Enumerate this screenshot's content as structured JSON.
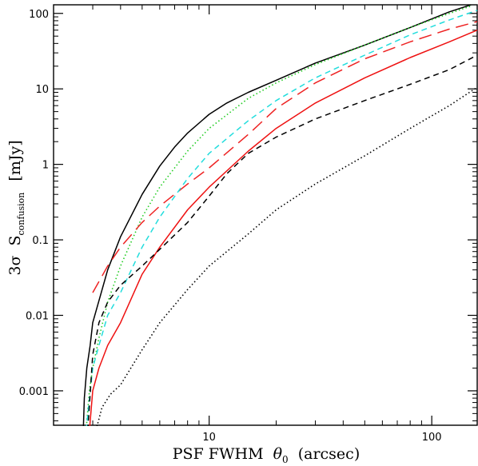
{
  "chart_data": {
    "type": "line",
    "title": "",
    "xscale": "log",
    "yscale": "log",
    "xlim": [
      2,
      160
    ],
    "ylim": [
      0.00035,
      130
    ],
    "grid": false,
    "legend": "none",
    "xlabel": {
      "main": "PSF FWHM",
      "symbol": "θ",
      "symbol_sub": "0",
      "unit": "(arcsec)"
    },
    "ylabel": {
      "prefix": "3σ",
      "main": "S",
      "sub": "confusion",
      "unit": "[mJy]"
    },
    "x_ticks": [
      {
        "value": 10,
        "label": "10"
      },
      {
        "value": 100,
        "label": "100"
      }
    ],
    "y_ticks": [
      {
        "value": 0.001,
        "label": "0.001"
      },
      {
        "value": 0.01,
        "label": "0.01"
      },
      {
        "value": 0.1,
        "label": "0.1"
      },
      {
        "value": 1,
        "label": "1"
      },
      {
        "value": 10,
        "label": "10"
      },
      {
        "value": 100,
        "label": "100"
      }
    ],
    "series": [
      {
        "key": "black-solid",
        "color": "#000000",
        "dash": "solid",
        "x": [
          2.72,
          2.75,
          2.82,
          2.92,
          3.0,
          3.5,
          4.0,
          5.0,
          6.0,
          7.0,
          8.0,
          10.0,
          12.0,
          15.0,
          20.0,
          30.0,
          50.0,
          80.0,
          120.0,
          150.0
        ],
        "y": [
          0.0003,
          0.0008,
          0.002,
          0.004,
          0.008,
          0.04,
          0.11,
          0.4,
          0.95,
          1.7,
          2.6,
          4.6,
          6.5,
          9.0,
          13.0,
          22.0,
          38.0,
          65.0,
          105.0,
          130.0
        ]
      },
      {
        "key": "green-dotted",
        "color": "#22cc22",
        "dash": "dotted",
        "x": [
          2.8,
          2.9,
          3.0,
          3.2,
          3.5,
          4.0,
          5.0,
          6.0,
          8.0,
          10.0,
          15.0,
          20.0,
          30.0,
          50.0,
          80.0,
          120.0,
          150.0
        ],
        "y": [
          0.0003,
          0.001,
          0.002,
          0.005,
          0.015,
          0.045,
          0.2,
          0.5,
          1.5,
          3.0,
          7.5,
          12.0,
          21.0,
          38.0,
          65.0,
          100.0,
          125.0
        ]
      },
      {
        "key": "red-longdash",
        "color": "#ee2222",
        "dash": "longdash",
        "x": [
          3.0,
          3.2,
          3.5,
          4.0,
          5.0,
          6.0,
          8.0,
          10.0,
          15.0,
          20.0,
          30.0,
          50.0,
          80.0,
          120.0,
          160.0
        ],
        "y": [
          0.02,
          0.028,
          0.045,
          0.08,
          0.17,
          0.28,
          0.55,
          0.9,
          2.5,
          5.5,
          12.0,
          25.0,
          42.0,
          62.0,
          78.0
        ]
      },
      {
        "key": "cyan-dashed",
        "color": "#22dddd",
        "dash": "dashed",
        "x": [
          2.8,
          3.0,
          3.2,
          3.5,
          4.0,
          5.0,
          6.0,
          8.0,
          10.0,
          15.0,
          20.0,
          30.0,
          50.0,
          80.0,
          120.0,
          160.0
        ],
        "y": [
          0.0003,
          0.002,
          0.004,
          0.01,
          0.02,
          0.08,
          0.2,
          0.65,
          1.4,
          3.8,
          7.0,
          14.0,
          28.0,
          52.0,
          82.0,
          110.0
        ]
      },
      {
        "key": "red-solid",
        "color": "#ee1111",
        "dash": "solid",
        "x": [
          2.9,
          3.0,
          3.2,
          3.5,
          4.0,
          5.0,
          6.0,
          8.0,
          10.0,
          15.0,
          20.0,
          30.0,
          50.0,
          80.0,
          120.0,
          160.0
        ],
        "y": [
          0.0003,
          0.001,
          0.002,
          0.004,
          0.008,
          0.035,
          0.08,
          0.25,
          0.5,
          1.5,
          3.0,
          6.5,
          14.0,
          26.0,
          42.0,
          60.0
        ]
      },
      {
        "key": "black-dashed",
        "color": "#000000",
        "dash": "dashed",
        "x": [
          2.85,
          3.0,
          3.2,
          3.5,
          4.0,
          5.0,
          6.0,
          8.0,
          10.0,
          12.0,
          15.0,
          20.0,
          30.0,
          50.0,
          80.0,
          120.0,
          160.0
        ],
        "y": [
          0.0003,
          0.003,
          0.008,
          0.015,
          0.025,
          0.045,
          0.075,
          0.17,
          0.38,
          0.75,
          1.4,
          2.3,
          4.0,
          7.0,
          11.5,
          18.0,
          28.0
        ]
      },
      {
        "key": "black-dotted",
        "color": "#000000",
        "dash": "dotted",
        "x": [
          3.1,
          3.3,
          3.6,
          4.0,
          5.0,
          6.0,
          8.0,
          10.0,
          15.0,
          20.0,
          30.0,
          50.0,
          80.0,
          120.0,
          160.0
        ],
        "y": [
          0.0003,
          0.0006,
          0.0009,
          0.0012,
          0.0035,
          0.008,
          0.022,
          0.045,
          0.12,
          0.25,
          0.55,
          1.3,
          3.0,
          6.0,
          10.5
        ]
      }
    ]
  }
}
